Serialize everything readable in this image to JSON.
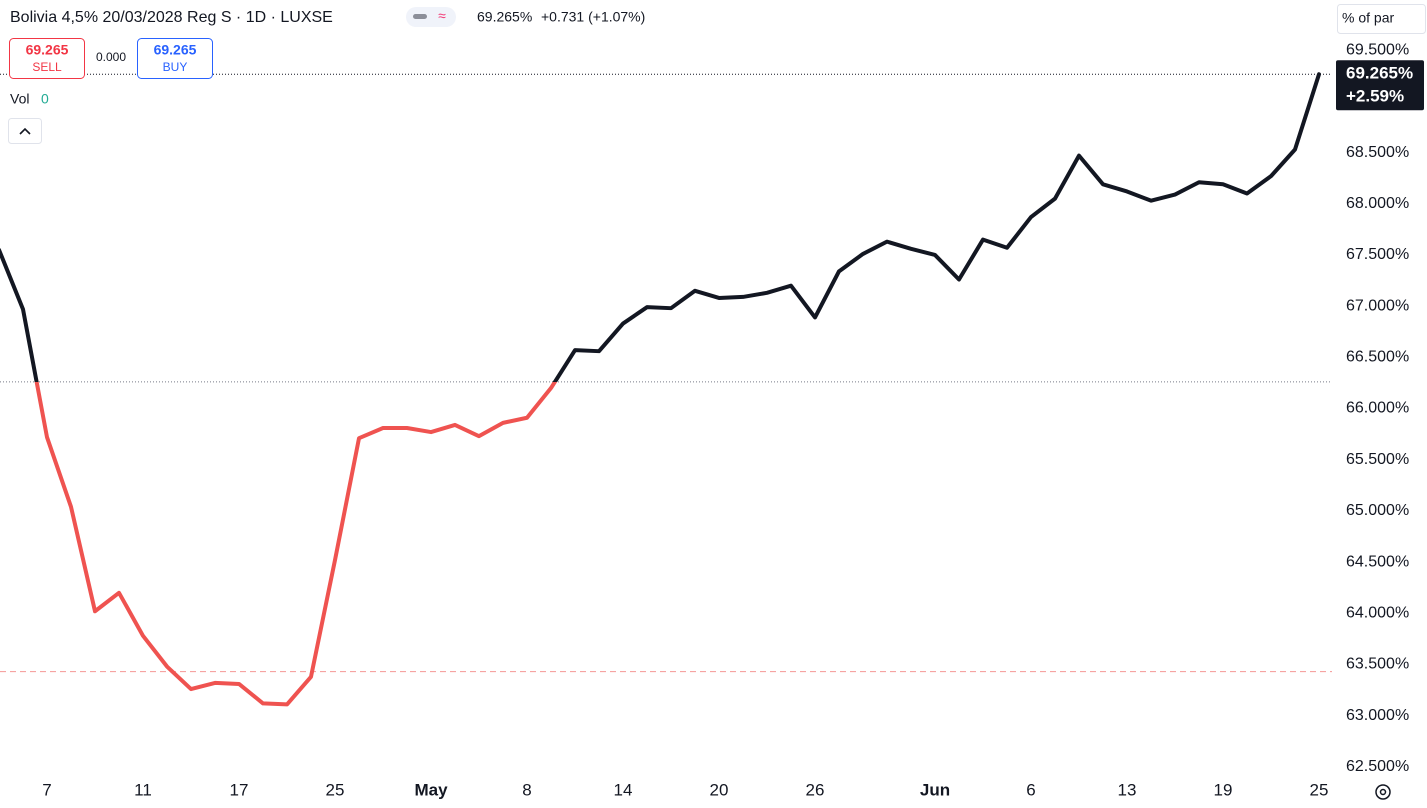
{
  "header": {
    "symbol": "Bolivia 4,5% 20/03/2028 Reg S · 1D · LUXSE",
    "last": "69.265%",
    "change": "+0.731 (+1.07%)",
    "sell_price": "69.265",
    "sell": "SELL",
    "spread": "0.000",
    "buy_price": "69.265",
    "buy": "BUY",
    "vol_label": "Vol",
    "vol_value": "0",
    "unit": "% of par"
  },
  "price_label": {
    "price": "69.265%",
    "change": "+2.59%"
  },
  "chart_data": {
    "type": "line",
    "categories": [
      null,
      null,
      "7",
      null,
      null,
      null,
      "11",
      null,
      null,
      null,
      "17",
      null,
      null,
      null,
      "25",
      null,
      null,
      null,
      "May",
      null,
      null,
      null,
      "8",
      null,
      null,
      null,
      "14",
      null,
      null,
      null,
      "20",
      null,
      null,
      null,
      "26",
      null,
      null,
      null,
      null,
      "Jun",
      null,
      null,
      null,
      "6",
      null,
      null,
      null,
      "13",
      null,
      null,
      null,
      "19",
      null,
      null,
      null,
      "25"
    ],
    "values": [
      67.55,
      66.97,
      65.72,
      65.04,
      64.02,
      64.2,
      63.78,
      63.48,
      63.26,
      63.32,
      63.31,
      63.12,
      63.11,
      63.38,
      64.52,
      65.71,
      65.81,
      65.81,
      65.77,
      65.84,
      65.73,
      65.86,
      65.91,
      66.2,
      66.57,
      66.56,
      66.83,
      66.99,
      66.98,
      67.15,
      67.08,
      67.09,
      67.13,
      67.2,
      66.89,
      67.34,
      67.51,
      67.63,
      67.56,
      67.5,
      67.26,
      67.65,
      67.57,
      67.87,
      68.05,
      68.47,
      68.19,
      68.12,
      68.03,
      68.09,
      68.21,
      68.19,
      68.1,
      68.27,
      68.53,
      69.265
    ],
    "baseline": 66.26,
    "low_line": 63.43,
    "price_line": 69.265,
    "up_color": "#131722",
    "down_color": "#ef5350",
    "ylim": [
      62.45,
      69.99
    ],
    "yticks": [
      {
        "value": 62.5,
        "label": "62.500%"
      },
      {
        "value": 63.0,
        "label": "63.000%"
      },
      {
        "value": 63.5,
        "label": "63.500%"
      },
      {
        "value": 64.0,
        "label": "64.000%"
      },
      {
        "value": 64.5,
        "label": "64.500%"
      },
      {
        "value": 65.0,
        "label": "65.000%"
      },
      {
        "value": 65.5,
        "label": "65.500%"
      },
      {
        "value": 66.0,
        "label": "66.000%"
      },
      {
        "value": 66.5,
        "label": "66.500%"
      },
      {
        "value": 67.0,
        "label": "67.000%"
      },
      {
        "value": 67.5,
        "label": "67.500%"
      },
      {
        "value": 68.0,
        "label": "68.000%"
      },
      {
        "value": 68.5,
        "label": "68.500%"
      },
      {
        "value": 69.5,
        "label": "69.500%"
      }
    ]
  }
}
